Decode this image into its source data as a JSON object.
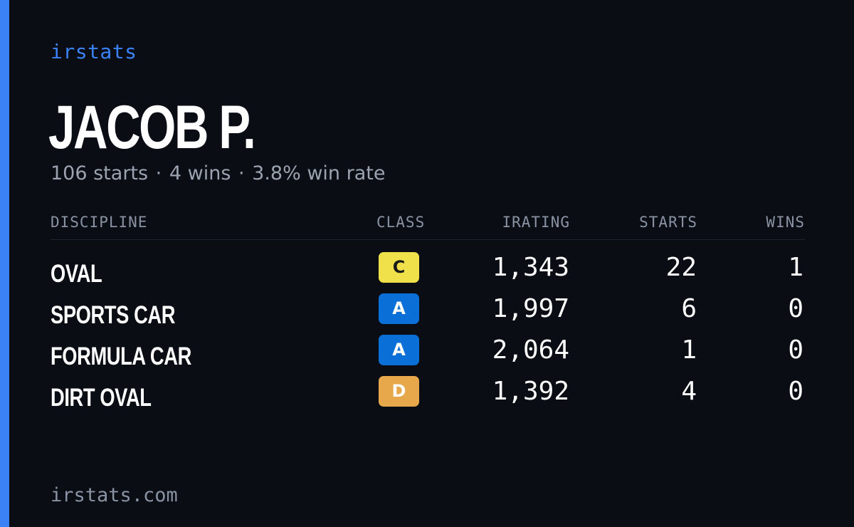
{
  "brand": "irstats",
  "player": {
    "name": "JACOB P.",
    "summary_starts": "106 starts",
    "summary_wins": "4 wins",
    "summary_rate": "3.8% win rate",
    "separator": "·"
  },
  "table": {
    "headers": {
      "discipline": "DISCIPLINE",
      "class": "CLASS",
      "irating": "IRATING",
      "starts": "STARTS",
      "wins": "WINS"
    },
    "rows": [
      {
        "discipline": "OVAL",
        "class": "C",
        "class_bg": "#f0e04a",
        "class_fg": "#1a1a1a",
        "irating": "1,343",
        "starts": "22",
        "wins": "1"
      },
      {
        "discipline": "SPORTS CAR",
        "class": "A",
        "class_bg": "#0a6fd6",
        "class_fg": "#ffffff",
        "irating": "1,997",
        "starts": "6",
        "wins": "0"
      },
      {
        "discipline": "FORMULA CAR",
        "class": "A",
        "class_bg": "#0a6fd6",
        "class_fg": "#ffffff",
        "irating": "2,064",
        "starts": "1",
        "wins": "0"
      },
      {
        "discipline": "DIRT OVAL",
        "class": "D",
        "class_bg": "#e6a84a",
        "class_fg": "#ffffff",
        "irating": "1,392",
        "starts": "4",
        "wins": "0"
      }
    ]
  },
  "footer": "irstats.com",
  "colors": {
    "background": "#0a0d14",
    "accent": "#3b82f6",
    "muted": "#9ca3b0"
  }
}
